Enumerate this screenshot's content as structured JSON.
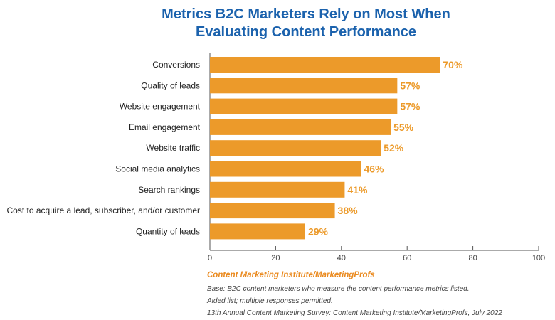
{
  "chart_data": {
    "type": "bar",
    "orientation": "horizontal",
    "title": "Metrics B2C Marketers Rely on Most When Evaluating Content Performance",
    "title_lines": [
      "Metrics B2C Marketers Rely on Most When",
      "Evaluating Content Performance"
    ],
    "categories": [
      "Conversions",
      "Quality of leads",
      "Website engagement",
      "Email engagement",
      "Website traffic",
      "Social media analytics",
      "Search rankings",
      "Cost to acquire a lead, subscriber, and/or customer",
      "Quantity of leads"
    ],
    "values": [
      70,
      57,
      57,
      55,
      52,
      46,
      41,
      38,
      29
    ],
    "value_labels": [
      "70%",
      "57%",
      "57%",
      "55%",
      "52%",
      "46%",
      "41%",
      "38%",
      "29%"
    ],
    "xlim": [
      0,
      100
    ],
    "xticks": [
      0,
      20,
      40,
      60,
      80,
      100
    ],
    "grid": false,
    "bar_color": "#ec9a2a",
    "title_color": "#1b62ad"
  },
  "footer": {
    "source": "Content Marketing Institute/MarketingProfs",
    "notes": [
      "Base: B2C content marketers who measure the content performance metrics listed.",
      "Aided list; multiple responses permitted.",
      "13th Annual Content Marketing Survey: Content Marketing Institute/MarketingProfs, July 2022"
    ]
  }
}
